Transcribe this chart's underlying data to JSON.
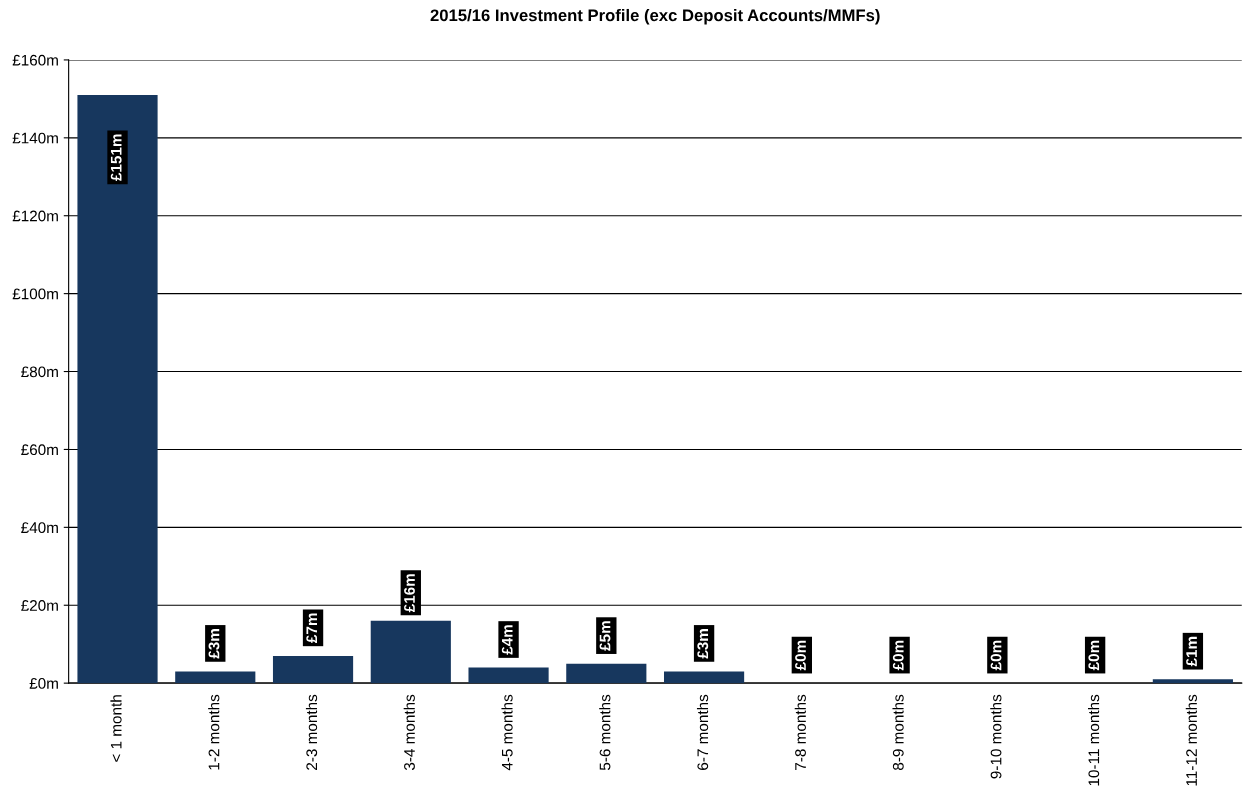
{
  "chart_data": {
    "type": "bar",
    "title": "2015/16 Investment Profile (exc Deposit Accounts/MMFs)",
    "categories": [
      "< 1 month",
      "1-2 months",
      "2-3 months",
      "3-4 months",
      "4-5 months",
      "5-6 months",
      "6-7 months",
      "7-8 months",
      "8-9 months",
      "9-10 months",
      "10-11 months",
      "11-12 months"
    ],
    "values": [
      151,
      3,
      7,
      16,
      4,
      5,
      3,
      0,
      0,
      0,
      0,
      1
    ],
    "value_labels": [
      "£151m",
      "£3m",
      "£7m",
      "£16m",
      "£4m",
      "£5m",
      "£3m",
      "£0m",
      "£0m",
      "£0m",
      "£0m",
      "£1m"
    ],
    "color": "#17375e",
    "ylim": [
      0,
      160
    ],
    "yticks": [
      {
        "value": 0,
        "label": "£0m"
      },
      {
        "value": 20,
        "label": "£20m"
      },
      {
        "value": 40,
        "label": "£40m"
      },
      {
        "value": 60,
        "label": "£60m"
      },
      {
        "value": 80,
        "label": "£80m"
      },
      {
        "value": 100,
        "label": "£100m"
      },
      {
        "value": 120,
        "label": "£120m"
      },
      {
        "value": 140,
        "label": "£140m"
      },
      {
        "value": 160,
        "label": "£160m"
      }
    ],
    "grid": "y"
  }
}
